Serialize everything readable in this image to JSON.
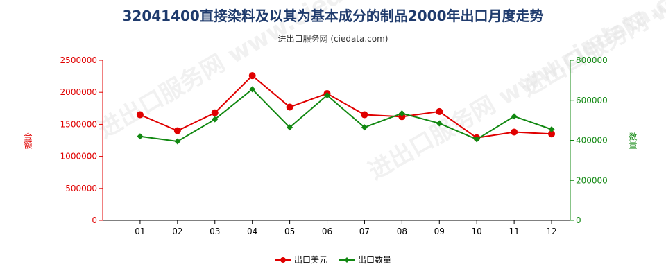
{
  "header": {
    "title": "32041400直接染料及以其为基本成分的制品2000年出口月度走势",
    "subtitle": "进出口服务网 (ciedata.com)"
  },
  "watermark": {
    "text": "进出口服务网 www.ciedata.com"
  },
  "colors": {
    "left_series": "#e00000",
    "right_series": "#118811",
    "axis_left": "#e00000",
    "axis_right": "#118811"
  },
  "chart_data": {
    "type": "line",
    "title": "32041400直接染料及以其为基本成分的制品2000年出口月度走势",
    "categories": [
      "01",
      "02",
      "03",
      "04",
      "05",
      "06",
      "07",
      "08",
      "09",
      "10",
      "11",
      "12"
    ],
    "y_left": {
      "label": "金额",
      "ylim": [
        0,
        2500000
      ],
      "ticks": [
        "0",
        "500000",
        "1000000",
        "1500000",
        "2000000",
        "2500000"
      ]
    },
    "y_right": {
      "label": "数量",
      "ylim": [
        0,
        800000
      ],
      "ticks": [
        "0",
        "200000",
        "400000",
        "600000",
        "800000"
      ]
    },
    "series": [
      {
        "name": "出口美元",
        "axis": "left",
        "values": [
          1650000,
          1400000,
          1680000,
          2260000,
          1770000,
          1980000,
          1650000,
          1620000,
          1700000,
          1290000,
          1380000,
          1350000
        ]
      },
      {
        "name": "出口数量",
        "axis": "right",
        "values": [
          420000,
          395000,
          505000,
          655000,
          465000,
          625000,
          465000,
          535000,
          485000,
          405000,
          520000,
          455000
        ]
      }
    ],
    "legend_position": "bottom-center",
    "grid": false
  }
}
